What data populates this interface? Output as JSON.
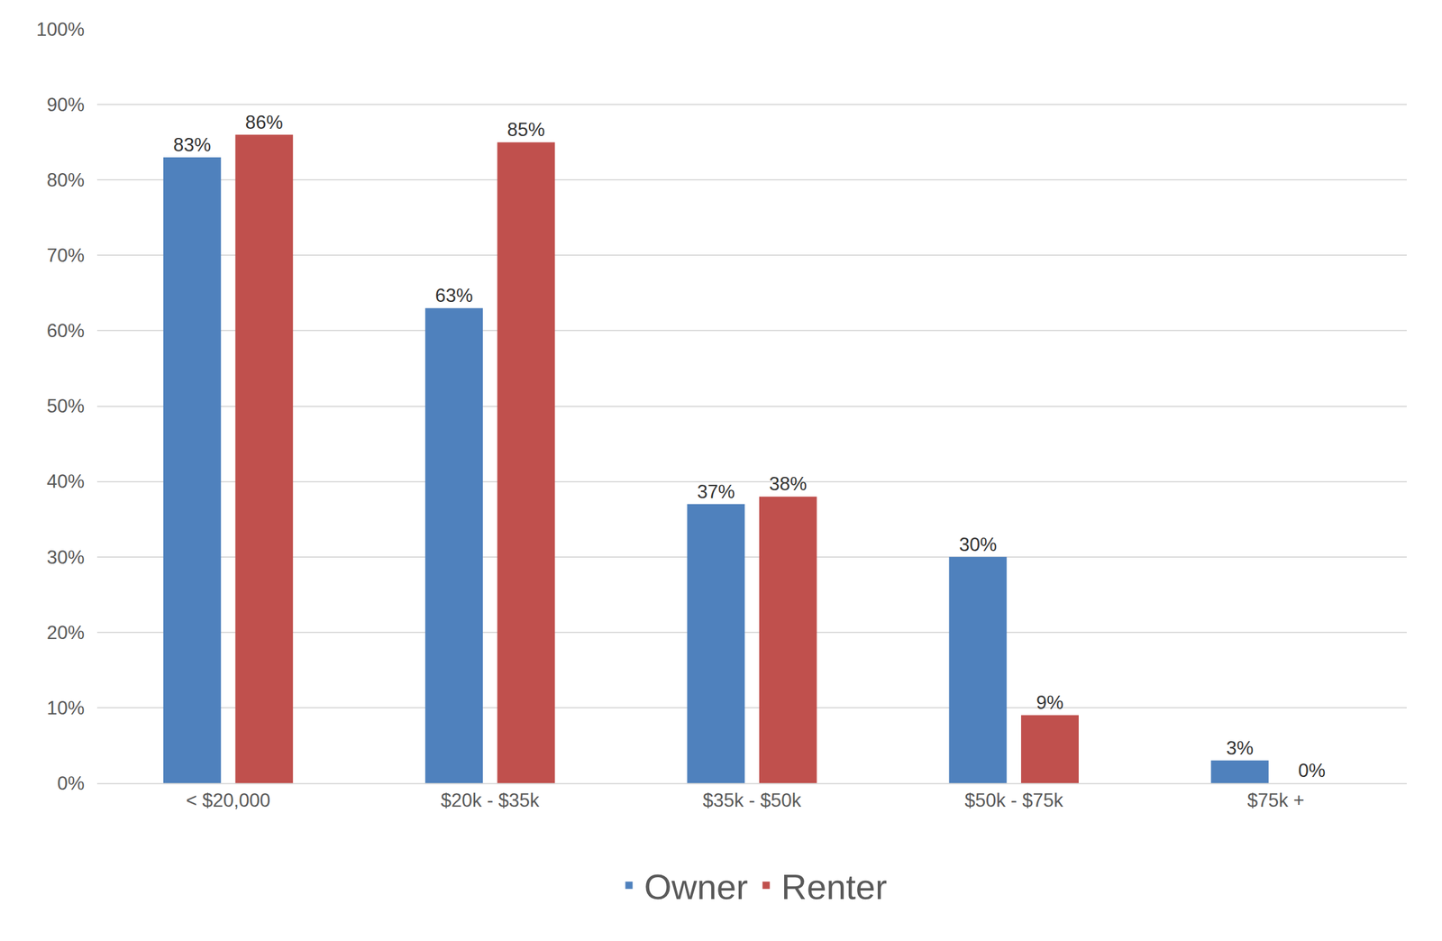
{
  "chart_data": {
    "type": "bar",
    "categories": [
      "< $20,000",
      "$20k - $35k",
      "$35k - $50k",
      "$50k - $75k",
      "$75k +"
    ],
    "series": [
      {
        "name": "Owner",
        "color": "#4f81bd",
        "values": [
          83,
          63,
          37,
          30,
          3
        ],
        "value_labels": [
          "83%",
          "63%",
          "37%",
          "30%",
          "3%"
        ]
      },
      {
        "name": "Renter",
        "color": "#c0504d",
        "values": [
          86,
          85,
          38,
          9,
          0
        ],
        "value_labels": [
          "86%",
          "85%",
          "38%",
          "9%",
          "0%"
        ]
      }
    ],
    "ylim": [
      0,
      100
    ],
    "yticks": [
      {
        "value": 0,
        "label": "0%"
      },
      {
        "value": 10,
        "label": "10%"
      },
      {
        "value": 20,
        "label": "20%"
      },
      {
        "value": 30,
        "label": "30%"
      },
      {
        "value": 40,
        "label": "40%"
      },
      {
        "value": 50,
        "label": "50%"
      },
      {
        "value": 60,
        "label": "60%"
      },
      {
        "value": 70,
        "label": "70%"
      },
      {
        "value": 80,
        "label": "80%"
      },
      {
        "value": 90,
        "label": "90%"
      },
      {
        "value": 100,
        "label": "100%"
      }
    ],
    "grid": true,
    "data_labels": true,
    "legend": "bottom"
  }
}
